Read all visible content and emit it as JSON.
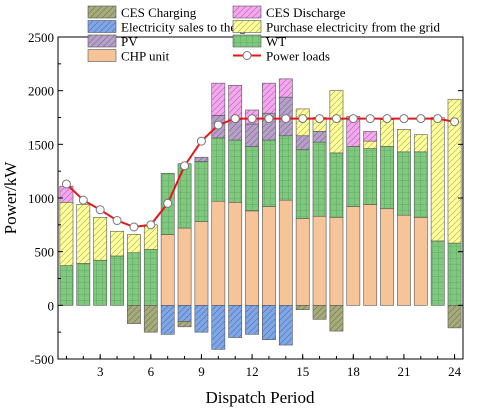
{
  "chart_data": {
    "type": "bar",
    "subtype": "stacked-bar-with-line",
    "xlabel": "Dispatch Period",
    "ylabel": "Power/kW",
    "ylim": [
      -500,
      2500
    ],
    "yticks": [
      "-500",
      "0",
      "500",
      "1000",
      "1500",
      "2000",
      "2500"
    ],
    "xlim": [
      0.5,
      24.5
    ],
    "xticks": [
      "3",
      "6",
      "9",
      "12",
      "15",
      "18",
      "21",
      "24"
    ],
    "categories": [
      1,
      2,
      3,
      4,
      5,
      6,
      7,
      8,
      9,
      10,
      11,
      12,
      13,
      14,
      15,
      16,
      17,
      18,
      19,
      20,
      21,
      22,
      23,
      24
    ],
    "legend_placement": "top",
    "series": [
      {
        "name": "CHP unit",
        "color": "#f7c49a",
        "hatch": "none",
        "values": [
          0,
          0,
          0,
          0,
          0,
          0,
          660,
          720,
          780,
          970,
          960,
          880,
          920,
          980,
          810,
          830,
          820,
          920,
          940,
          900,
          840,
          820,
          0,
          0
        ]
      },
      {
        "name": "WT",
        "color": "#7fc97f",
        "hatch": "grid",
        "values": [
          370,
          390,
          420,
          460,
          490,
          520,
          570,
          600,
          560,
          590,
          580,
          600,
          620,
          600,
          640,
          690,
          600,
          560,
          520,
          580,
          590,
          610,
          600,
          580
        ]
      },
      {
        "name": "PV",
        "color": "#b6a0c9",
        "hatch": "diag",
        "values": [
          0,
          0,
          0,
          0,
          0,
          0,
          0,
          0,
          40,
          210,
          190,
          210,
          250,
          360,
          130,
          100,
          0,
          0,
          0,
          0,
          0,
          0,
          0,
          0
        ]
      },
      {
        "name": "Purchase electricity from the grid",
        "color": "#ffff99",
        "hatch": "diag",
        "values": [
          590,
          550,
          400,
          230,
          170,
          230,
          0,
          0,
          0,
          0,
          0,
          0,
          0,
          0,
          250,
          130,
          580,
          0,
          70,
          250,
          210,
          160,
          1150,
          1340
        ]
      },
      {
        "name": "CES Discharge",
        "color": "#f6a6f0",
        "hatch": "diag",
        "values": [
          150,
          0,
          0,
          0,
          0,
          0,
          0,
          0,
          0,
          300,
          320,
          130,
          280,
          170,
          0,
          0,
          0,
          280,
          90,
          0,
          0,
          0,
          0,
          0
        ]
      },
      {
        "name": "Electricity sales to the grid",
        "color": "#7fa6e8",
        "hatch": "diag",
        "values": [
          0,
          0,
          0,
          0,
          0,
          0,
          -270,
          -150,
          -250,
          -410,
          -300,
          -270,
          -320,
          -370,
          0,
          0,
          0,
          0,
          0,
          0,
          0,
          0,
          0,
          0
        ]
      },
      {
        "name": "CES Charging",
        "color": "#a7ab7b",
        "hatch": "diag",
        "values": [
          0,
          0,
          0,
          0,
          -170,
          -250,
          0,
          -50,
          0,
          0,
          0,
          0,
          0,
          0,
          -40,
          -130,
          -240,
          0,
          0,
          0,
          0,
          0,
          0,
          -210
        ]
      }
    ],
    "line": {
      "name": "Power loads",
      "color": "#e8161a",
      "values": [
        1130,
        980,
        890,
        790,
        730,
        750,
        950,
        1300,
        1530,
        1680,
        1740,
        1740,
        1740,
        1740,
        1740,
        1740,
        1740,
        1740,
        1740,
        1740,
        1740,
        1740,
        1740,
        1710
      ]
    },
    "legend": [
      {
        "name": "CES Charging",
        "color": "#a7ab7b",
        "hatch": "diag",
        "kind": "box"
      },
      {
        "name": "CES Discharge",
        "color": "#f6a6f0",
        "hatch": "diag",
        "kind": "box"
      },
      {
        "name": "Electricity sales to the grid",
        "color": "#7fa6e8",
        "hatch": "diag",
        "kind": "box"
      },
      {
        "name": "Purchase electricity from the grid",
        "color": "#ffff99",
        "hatch": "diag",
        "kind": "box"
      },
      {
        "name": "PV",
        "color": "#b6a0c9",
        "hatch": "diag",
        "kind": "box"
      },
      {
        "name": "WT",
        "color": "#7fc97f",
        "hatch": "grid",
        "kind": "box"
      },
      {
        "name": "CHP unit",
        "color": "#f7c49a",
        "hatch": "none",
        "kind": "box"
      },
      {
        "name": "Power loads",
        "color": "#e8161a",
        "kind": "line"
      }
    ]
  }
}
